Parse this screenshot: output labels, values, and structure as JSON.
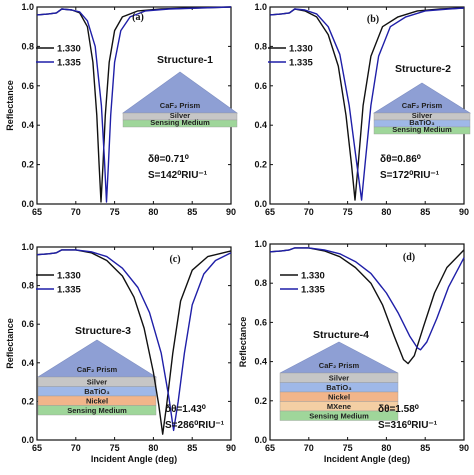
{
  "colors": {
    "black": "#111111",
    "blue": "#1f1fa8",
    "prism": "#8e9fd4",
    "silver": "#c6c6c6",
    "batio3": "#9fb8e8",
    "nickel": "#f2b58a",
    "mxene": "#f4cfa4",
    "sensing": "#9fd69a"
  },
  "chart_data": [
    {
      "type": "line",
      "panel": "(a)",
      "structure": "Structure-1",
      "xlabel": "",
      "ylabel": "Reflectance",
      "xlim": [
        65,
        90
      ],
      "ylim": [
        0,
        1.0
      ],
      "xticks": [
        "65",
        "70",
        "75",
        "80",
        "85",
        "90"
      ],
      "yticks": [
        "0.0",
        "0.2",
        "0.4",
        "0.6",
        "0.8",
        "1.0"
      ],
      "legend": [
        "1.330",
        "1.335"
      ],
      "layers": [
        "CaF₂ Prism",
        "Silver",
        "Sensing Medium"
      ],
      "annotation": [
        "δθ=0.71⁰",
        "S=142⁰RIU⁻¹"
      ],
      "series": [
        {
          "name": "1.330",
          "x": [
            65,
            66.5,
            67.5,
            68.2,
            69.5,
            70.5,
            71.5,
            72.2,
            72.7,
            73.0,
            73.25,
            73.5,
            73.8,
            74.3,
            75,
            76,
            78,
            81,
            85,
            90
          ],
          "y": [
            0.96,
            0.965,
            0.97,
            0.99,
            0.985,
            0.97,
            0.9,
            0.72,
            0.45,
            0.2,
            0.01,
            0.2,
            0.45,
            0.72,
            0.88,
            0.95,
            0.98,
            0.99,
            0.995,
            1.0
          ]
        },
        {
          "name": "1.335",
          "x": [
            65,
            66.5,
            67.5,
            68.2,
            69.5,
            70.5,
            71.5,
            72.5,
            73.3,
            73.7,
            73.96,
            74.2,
            74.5,
            75,
            75.8,
            77,
            79,
            82,
            86,
            90
          ],
          "y": [
            0.96,
            0.965,
            0.97,
            0.99,
            0.985,
            0.975,
            0.93,
            0.8,
            0.5,
            0.22,
            0.01,
            0.2,
            0.45,
            0.72,
            0.88,
            0.95,
            0.98,
            0.99,
            0.995,
            1.0
          ]
        }
      ]
    },
    {
      "type": "line",
      "panel": "(b)",
      "structure": "Structure-2",
      "xlabel": "",
      "ylabel": "",
      "xlim": [
        65,
        90
      ],
      "ylim": [
        0,
        1.0
      ],
      "xticks": [
        "65",
        "70",
        "75",
        "80",
        "85",
        "90"
      ],
      "yticks": [
        "0.0",
        "0.2",
        "0.4",
        "0.6",
        "0.8",
        "1.0"
      ],
      "legend": [
        "1.330",
        "1.335"
      ],
      "layers": [
        "CaF₂ Prism",
        "Silver",
        "BaTiO₃",
        "Sensing Medium"
      ],
      "annotation": [
        "δθ=0.86⁰",
        "S=172⁰RIU⁻¹"
      ],
      "series": [
        {
          "name": "1.330",
          "x": [
            65,
            66.5,
            67.5,
            68.2,
            69.5,
            71,
            72.5,
            73.8,
            74.8,
            75.5,
            75.95,
            76.4,
            77,
            78,
            79.5,
            81.5,
            84,
            87,
            90
          ],
          "y": [
            0.96,
            0.965,
            0.97,
            0.99,
            0.98,
            0.95,
            0.86,
            0.7,
            0.45,
            0.2,
            0.02,
            0.22,
            0.5,
            0.75,
            0.9,
            0.95,
            0.98,
            0.99,
            0.995
          ]
        },
        {
          "name": "1.335",
          "x": [
            65,
            66.5,
            67.5,
            68.2,
            69.5,
            71,
            72.5,
            74,
            75.2,
            76.2,
            76.81,
            77.3,
            78,
            79,
            80.5,
            82.5,
            85,
            88,
            90
          ],
          "y": [
            0.96,
            0.965,
            0.97,
            0.99,
            0.985,
            0.965,
            0.9,
            0.76,
            0.5,
            0.2,
            0.02,
            0.22,
            0.5,
            0.75,
            0.9,
            0.95,
            0.98,
            0.99,
            0.995
          ]
        }
      ]
    },
    {
      "type": "line",
      "panel": "(c)",
      "structure": "Structure-3",
      "xlabel": "Incident Angle (deg)",
      "ylabel": "Reflectance",
      "xlim": [
        65,
        90
      ],
      "ylim": [
        0,
        1.0
      ],
      "xticks": [
        "65",
        "70",
        "75",
        "80",
        "85",
        "90"
      ],
      "yticks": [
        "0.0",
        "0.2",
        "0.4",
        "0.6",
        "0.8",
        "1.0"
      ],
      "legend": [
        "1.330",
        "1.335"
      ],
      "layers": [
        "CaF₂ Prism",
        "Silver",
        "BaTiO₃",
        "Nickel",
        "Sensing Medium"
      ],
      "annotation": [
        "δθ=1.43⁰",
        "S=286⁰RIU⁻¹"
      ],
      "series": [
        {
          "name": "1.330",
          "x": [
            65,
            66.5,
            67.5,
            68.2,
            70,
            72,
            74,
            76,
            77.5,
            78.8,
            80,
            80.7,
            81.2,
            81.7,
            82.5,
            83.5,
            85,
            87,
            90
          ],
          "y": [
            0.96,
            0.965,
            0.97,
            0.985,
            0.985,
            0.97,
            0.93,
            0.85,
            0.74,
            0.58,
            0.35,
            0.18,
            0.03,
            0.18,
            0.45,
            0.72,
            0.88,
            0.95,
            0.98
          ]
        },
        {
          "name": "1.335",
          "x": [
            65,
            66.5,
            67.5,
            68.2,
            70,
            72,
            74,
            76,
            78,
            79.5,
            81,
            82,
            82.6,
            83.2,
            84,
            85,
            86.5,
            88,
            90
          ],
          "y": [
            0.96,
            0.965,
            0.97,
            0.985,
            0.985,
            0.975,
            0.95,
            0.89,
            0.79,
            0.66,
            0.45,
            0.22,
            0.05,
            0.2,
            0.45,
            0.7,
            0.86,
            0.93,
            0.97
          ]
        }
      ]
    },
    {
      "type": "line",
      "panel": "(d)",
      "structure": "Structure-4",
      "xlabel": "Incident Angle (deg)",
      "ylabel": "Reflectance",
      "xlim": [
        65,
        90
      ],
      "ylim": [
        0,
        1.0
      ],
      "xticks": [
        "65",
        "70",
        "75",
        "80",
        "85",
        "90"
      ],
      "yticks": [
        "0.0",
        "0.2",
        "0.4",
        "0.6",
        "0.8",
        "1.0"
      ],
      "legend": [
        "1.330",
        "1.335"
      ],
      "layers": [
        "CaF₂ Prism",
        "Silver",
        "BaTiO₃",
        "Nickel",
        "MXene",
        "Sensing Medium"
      ],
      "annotation": [
        "δθ=1.58⁰",
        "S=316⁰RIU⁻¹"
      ],
      "series": [
        {
          "name": "1.330",
          "x": [
            65,
            66.5,
            67.5,
            68.2,
            70,
            72,
            74,
            76,
            78,
            79.5,
            81,
            82.2,
            82.8,
            83.6,
            84.8,
            86.2,
            87.8,
            90
          ],
          "y": [
            0.96,
            0.965,
            0.97,
            0.98,
            0.98,
            0.965,
            0.935,
            0.88,
            0.8,
            0.69,
            0.53,
            0.41,
            0.39,
            0.43,
            0.58,
            0.75,
            0.88,
            0.97
          ]
        },
        {
          "name": "1.335",
          "x": [
            65,
            66.5,
            67.5,
            68.2,
            70,
            72,
            74,
            76,
            78,
            80,
            81.5,
            83,
            84,
            84.4,
            85.2,
            86.5,
            88,
            90
          ],
          "y": [
            0.96,
            0.965,
            0.97,
            0.98,
            0.98,
            0.97,
            0.95,
            0.91,
            0.85,
            0.75,
            0.65,
            0.53,
            0.47,
            0.46,
            0.5,
            0.62,
            0.78,
            0.93
          ]
        }
      ]
    }
  ]
}
